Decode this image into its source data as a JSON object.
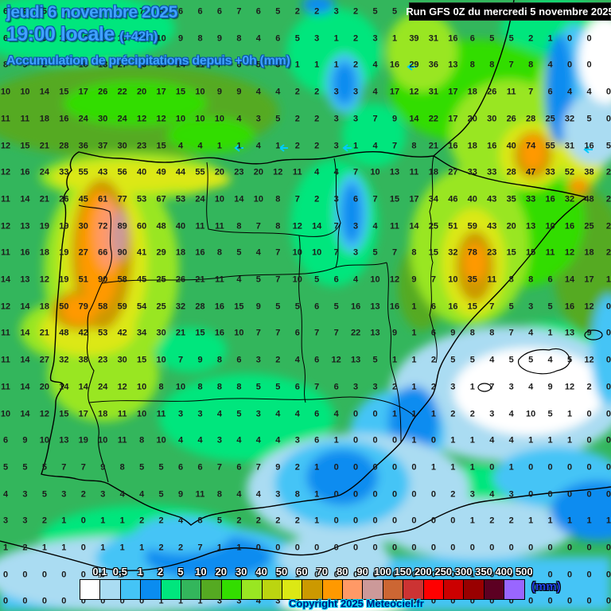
{
  "header": {
    "date_line": "jeudi 6 novembre 2025",
    "time_line": "19:00 locale",
    "time_offset": "(+42h)",
    "subtitle": "Accumulation de précipitations depuis +0h (mm)"
  },
  "run_box": {
    "label": "Run GFS 0Z du mercredi 5 novembre 2025"
  },
  "copyright": "Copyright 2025 Meteociel.fr",
  "legend": {
    "unit": "(mm)",
    "labels": [
      "0,1",
      "0,5",
      "1",
      "2",
      "5",
      "10",
      "20",
      "30",
      "40",
      "50",
      "60",
      "70",
      "80",
      "90",
      "100",
      "150",
      "200",
      "250",
      "300",
      "350",
      "400",
      "500"
    ],
    "colors": [
      "#ffffff",
      "#aadcf2",
      "#44c4f6",
      "#0a8cf0",
      "#00e67d",
      "#33b65c",
      "#55aa22",
      "#33dd00",
      "#99e622",
      "#bbd510",
      "#dce814",
      "#cc9900",
      "#ff9900",
      "#ff9966",
      "#cc9999",
      "#cc6633",
      "#cc3333",
      "#ff0000",
      "#cc0000",
      "#990000",
      "#5c0022",
      "#9966ff"
    ]
  },
  "map": {
    "sea_and_5_10mm_color": "#33b65c",
    "coastline_color": "#000000",
    "wind_arrow_color": "#00ccff",
    "number_color": "#1c1c1c"
  },
  "chart_data": {
    "type": "heatmap",
    "title": "Accumulation de précipitations depuis +0h (mm)",
    "unit": "mm",
    "legend_thresholds": [
      0.1,
      0.5,
      1,
      2,
      5,
      10,
      20,
      30,
      40,
      50,
      60,
      70,
      80,
      90,
      100,
      150,
      200,
      250,
      300,
      350,
      400,
      500
    ],
    "grid_rows": [
      [
        "6",
        "8",
        "5",
        "6",
        "11",
        "17",
        "14",
        "7",
        "6",
        "6",
        "6",
        "6",
        "7",
        "6",
        "5",
        "2",
        "2",
        "3",
        "2",
        "5",
        "5",
        "",
        "",
        "",
        "",
        "",
        "",
        "",
        "",
        "",
        "",
        ""
      ],
      [
        "6",
        "7",
        "9",
        "10",
        "12",
        "11",
        "10",
        "10",
        "10",
        "9",
        "8",
        "9",
        "8",
        "4",
        "6",
        "5",
        "3",
        "1",
        "2",
        "3",
        "1",
        "39",
        "31",
        "16",
        "6",
        "5",
        "5",
        "2",
        "1",
        "0",
        "0",
        ""
      ],
      [
        "8",
        "9",
        "2",
        "6",
        "10",
        "13",
        "27",
        "13",
        "15",
        "14",
        "11",
        "7",
        "6",
        "5",
        "3",
        "1",
        "1",
        "1",
        "2",
        "4",
        "16",
        "29",
        "36",
        "13",
        "8",
        "8",
        "7",
        "8",
        "4",
        "0",
        "0",
        ""
      ],
      [
        "10",
        "10",
        "14",
        "15",
        "17",
        "26",
        "22",
        "20",
        "17",
        "15",
        "10",
        "9",
        "9",
        "4",
        "4",
        "2",
        "2",
        "3",
        "3",
        "4",
        "17",
        "12",
        "31",
        "17",
        "18",
        "26",
        "11",
        "7",
        "6",
        "4",
        "4",
        "0"
      ],
      [
        "11",
        "11",
        "18",
        "16",
        "24",
        "30",
        "24",
        "12",
        "12",
        "10",
        "10",
        "10",
        "4",
        "3",
        "5",
        "2",
        "2",
        "3",
        "3",
        "7",
        "9",
        "14",
        "22",
        "17",
        "20",
        "30",
        "26",
        "28",
        "25",
        "32",
        "5",
        "0"
      ],
      [
        "12",
        "15",
        "21",
        "28",
        "36",
        "37",
        "30",
        "23",
        "15",
        "4",
        "4",
        "1",
        "1",
        "4",
        "1",
        "2",
        "2",
        "3",
        "1",
        "4",
        "7",
        "8",
        "21",
        "16",
        "18",
        "16",
        "40",
        "74",
        "55",
        "31",
        "16",
        "5"
      ],
      [
        "12",
        "16",
        "24",
        "33",
        "55",
        "43",
        "56",
        "40",
        "49",
        "44",
        "55",
        "20",
        "23",
        "20",
        "12",
        "11",
        "4",
        "4",
        "7",
        "10",
        "13",
        "11",
        "18",
        "27",
        "33",
        "33",
        "28",
        "47",
        "33",
        "52",
        "38",
        "2"
      ],
      [
        "11",
        "14",
        "21",
        "26",
        "45",
        "61",
        "77",
        "53",
        "67",
        "53",
        "24",
        "10",
        "14",
        "10",
        "8",
        "7",
        "2",
        "3",
        "6",
        "7",
        "15",
        "17",
        "34",
        "46",
        "40",
        "43",
        "35",
        "33",
        "16",
        "32",
        "48",
        "2"
      ],
      [
        "12",
        "13",
        "19",
        "19",
        "30",
        "72",
        "89",
        "60",
        "48",
        "40",
        "11",
        "11",
        "8",
        "7",
        "8",
        "12",
        "14",
        "7",
        "3",
        "4",
        "11",
        "14",
        "25",
        "51",
        "59",
        "43",
        "20",
        "13",
        "10",
        "16",
        "25",
        "2"
      ],
      [
        "11",
        "16",
        "18",
        "19",
        "27",
        "66",
        "90",
        "41",
        "29",
        "18",
        "16",
        "8",
        "5",
        "4",
        "7",
        "10",
        "10",
        "7",
        "3",
        "5",
        "7",
        "8",
        "15",
        "32",
        "78",
        "23",
        "15",
        "15",
        "11",
        "12",
        "18",
        "2"
      ],
      [
        "14",
        "13",
        "12",
        "19",
        "51",
        "90",
        "58",
        "45",
        "25",
        "26",
        "21",
        "11",
        "4",
        "5",
        "7",
        "10",
        "5",
        "6",
        "4",
        "10",
        "12",
        "9",
        "7",
        "10",
        "35",
        "11",
        "8",
        "8",
        "6",
        "14",
        "17",
        "1"
      ],
      [
        "12",
        "14",
        "18",
        "50",
        "79",
        "58",
        "59",
        "54",
        "25",
        "32",
        "28",
        "16",
        "15",
        "9",
        "5",
        "5",
        "6",
        "5",
        "16",
        "13",
        "16",
        "1",
        "6",
        "16",
        "15",
        "7",
        "5",
        "3",
        "5",
        "16",
        "12",
        "0"
      ],
      [
        "11",
        "14",
        "21",
        "48",
        "42",
        "53",
        "42",
        "34",
        "30",
        "21",
        "15",
        "16",
        "10",
        "7",
        "7",
        "6",
        "7",
        "7",
        "22",
        "13",
        "9",
        "1",
        "6",
        "9",
        "8",
        "8",
        "7",
        "4",
        "1",
        "13",
        "9",
        "0"
      ],
      [
        "11",
        "14",
        "27",
        "32",
        "38",
        "23",
        "30",
        "15",
        "10",
        "7",
        "9",
        "8",
        "6",
        "3",
        "2",
        "4",
        "6",
        "12",
        "13",
        "5",
        "1",
        "1",
        "2",
        "5",
        "5",
        "4",
        "5",
        "5",
        "4",
        "5",
        "12",
        "0"
      ],
      [
        "11",
        "14",
        "20",
        "14",
        "14",
        "24",
        "12",
        "10",
        "8",
        "10",
        "8",
        "8",
        "8",
        "5",
        "5",
        "6",
        "7",
        "6",
        "3",
        "3",
        "2",
        "1",
        "2",
        "3",
        "1",
        "7",
        "3",
        "4",
        "9",
        "12",
        "2",
        "0"
      ],
      [
        "10",
        "14",
        "12",
        "15",
        "17",
        "18",
        "11",
        "10",
        "11",
        "3",
        "3",
        "4",
        "5",
        "3",
        "4",
        "4",
        "6",
        "4",
        "0",
        "0",
        "1",
        "1",
        "1",
        "2",
        "2",
        "3",
        "4",
        "10",
        "5",
        "1",
        "0",
        "0"
      ],
      [
        "6",
        "9",
        "10",
        "13",
        "19",
        "10",
        "11",
        "8",
        "10",
        "4",
        "4",
        "3",
        "4",
        "4",
        "4",
        "3",
        "6",
        "1",
        "0",
        "0",
        "0",
        "1",
        "0",
        "1",
        "1",
        "4",
        "4",
        "1",
        "1",
        "1",
        "0",
        "0"
      ],
      [
        "5",
        "5",
        "5",
        "7",
        "7",
        "9",
        "8",
        "5",
        "5",
        "6",
        "6",
        "7",
        "6",
        "7",
        "9",
        "2",
        "1",
        "0",
        "0",
        "0",
        "0",
        "0",
        "1",
        "1",
        "1",
        "0",
        "1",
        "0",
        "0",
        "0",
        "0",
        "0"
      ],
      [
        "4",
        "3",
        "5",
        "3",
        "2",
        "3",
        "4",
        "4",
        "5",
        "9",
        "11",
        "8",
        "4",
        "4",
        "3",
        "8",
        "1",
        "0",
        "0",
        "0",
        "0",
        "0",
        "0",
        "2",
        "3",
        "4",
        "3",
        "0",
        "0",
        "0",
        "0",
        "0"
      ],
      [
        "3",
        "3",
        "2",
        "1",
        "0",
        "1",
        "1",
        "2",
        "2",
        "4",
        "8",
        "5",
        "2",
        "2",
        "2",
        "2",
        "1",
        "0",
        "0",
        "0",
        "0",
        "0",
        "0",
        "0",
        "1",
        "2",
        "2",
        "1",
        "1",
        "1",
        "1",
        "1"
      ],
      [
        "1",
        "2",
        "1",
        "1",
        "0",
        "1",
        "1",
        "1",
        "2",
        "2",
        "7",
        "1",
        "1",
        "0",
        "0",
        "0",
        "0",
        "0",
        "0",
        "0",
        "0",
        "0",
        "0",
        "0",
        "0",
        "0",
        "0",
        "0",
        "0",
        "0",
        "0",
        "0"
      ],
      [
        "0",
        "0",
        "0",
        "0",
        "0",
        "0",
        "0",
        "0",
        "0",
        "0",
        "0",
        "6",
        "3",
        "0",
        "1",
        "1",
        "0",
        "0",
        "0",
        "0",
        "0",
        "0",
        "0",
        "0",
        "1",
        "0",
        "0",
        "0",
        "0",
        "0",
        "0",
        "0"
      ],
      [
        "0",
        "0",
        "0",
        "0",
        "0",
        "0",
        "0",
        "0",
        "1",
        "1",
        "1",
        "3",
        "3",
        "4",
        "3",
        "2",
        "1",
        "0",
        "0",
        "0",
        "0",
        "0",
        "0",
        "0",
        "0",
        "0",
        "0",
        "0",
        "0",
        "0",
        "0",
        "0"
      ]
    ]
  }
}
